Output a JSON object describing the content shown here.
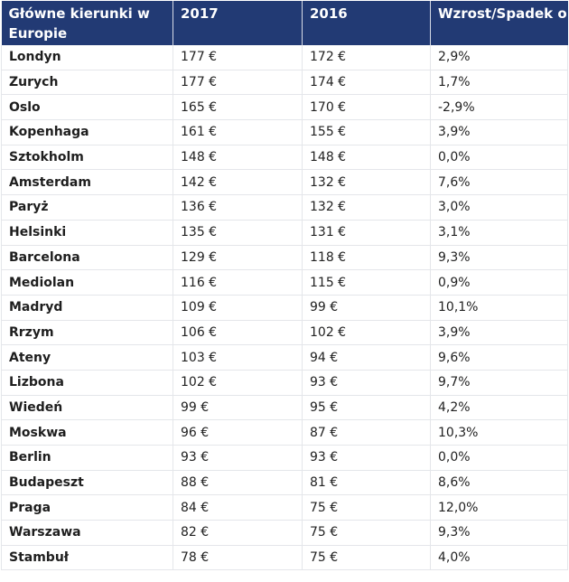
{
  "table": {
    "headers": [
      "Główne kierunki w Europie",
      "2017",
      "2016",
      "Wzrost/Spadek o"
    ],
    "rows": [
      [
        "Londyn",
        "177 €",
        "172 €",
        "2,9%"
      ],
      [
        "Zurych",
        "177 €",
        "174 €",
        "1,7%"
      ],
      [
        "Oslo",
        "165 €",
        "170 €",
        "-2,9%"
      ],
      [
        "Kopenhaga",
        "161 €",
        "155 €",
        "3,9%"
      ],
      [
        "Sztokholm",
        "148 €",
        "148 €",
        "0,0%"
      ],
      [
        "Amsterdam",
        "142 €",
        "132 €",
        "7,6%"
      ],
      [
        "Paryż",
        "136 €",
        "132 €",
        "3,0%"
      ],
      [
        "Helsinki",
        "135 €",
        "131 €",
        "3,1%"
      ],
      [
        "Barcelona",
        "129 €",
        "118 €",
        "9,3%"
      ],
      [
        "Mediolan",
        "116 €",
        "115 €",
        "0,9%"
      ],
      [
        "Madryd",
        "109 €",
        "99 €",
        "10,1%"
      ],
      [
        "Rrzym",
        "106 €",
        "102 €",
        "3,9%"
      ],
      [
        "Ateny",
        "103 €",
        "94 €",
        "9,6%"
      ],
      [
        "Lizbona",
        "102 €",
        "93 €",
        "9,7%"
      ],
      [
        "Wiedeń",
        "99 €",
        "95 €",
        "4,2%"
      ],
      [
        "Moskwa",
        "96 €",
        "87 €",
        "10,3%"
      ],
      [
        "Berlin",
        "93 €",
        "93 €",
        "0,0%"
      ],
      [
        "Budapeszt",
        "88 €",
        "81 €",
        "8,6%"
      ],
      [
        "Praga",
        "84 €",
        "75 €",
        "12,0%"
      ],
      [
        "Warszawa",
        "82 €",
        "75 €",
        "9,3%"
      ],
      [
        "Stambuł",
        "78 €",
        "75 €",
        "4,0%"
      ]
    ]
  },
  "colors": {
    "header_bg": "#223a74",
    "header_text": "#ffffff",
    "grid": "#e4e6ea"
  }
}
